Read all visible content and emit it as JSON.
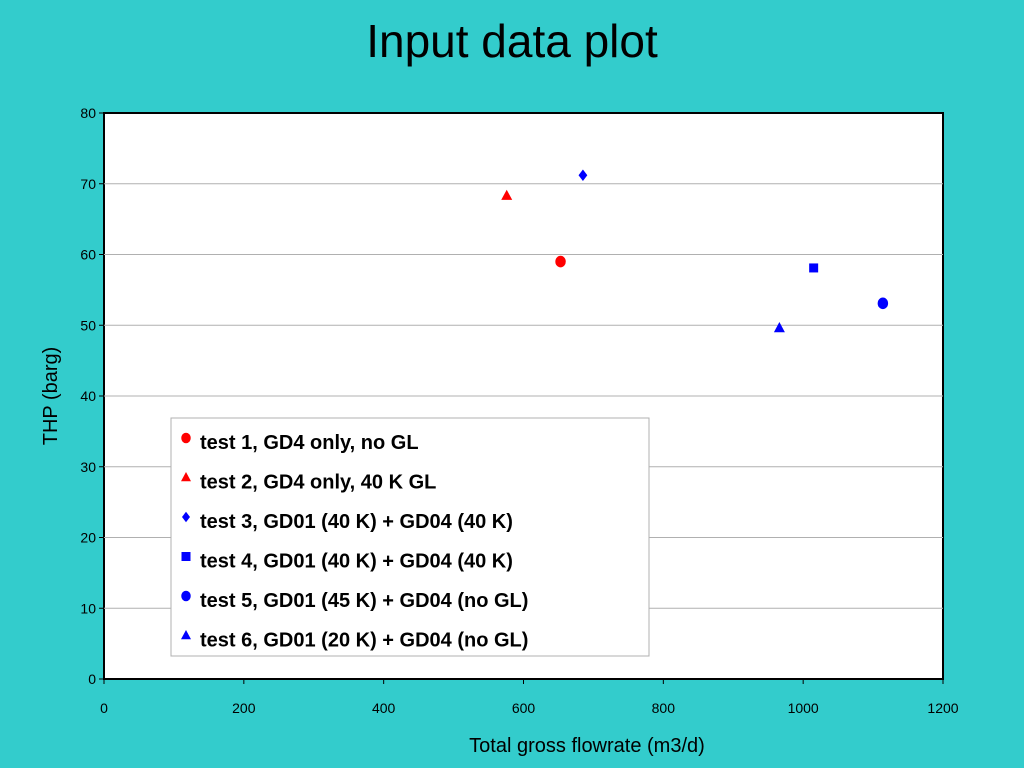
{
  "page": {
    "title": "Input data plot"
  },
  "chart_data": {
    "type": "scatter",
    "title": "Input data plot",
    "xlabel": "Total gross flowrate (m3/d)",
    "ylabel": "THP (barg)",
    "xlim": [
      0,
      1200
    ],
    "ylim": [
      0,
      80
    ],
    "xticks": [
      0,
      200,
      400,
      600,
      800,
      1000,
      1200
    ],
    "yticks": [
      0,
      10,
      20,
      30,
      40,
      50,
      60,
      70,
      80
    ],
    "grid": "horizontal",
    "legend_position": "bottom-left",
    "series": [
      {
        "name": "test 1, GD4 only, no GL",
        "marker": "circle",
        "color": "#ff0000",
        "points": [
          [
            653,
            59
          ]
        ]
      },
      {
        "name": "test 2, GD4 only, 40 K GL",
        "marker": "triangle",
        "color": "#ff0000",
        "points": [
          [
            576,
            68.3
          ]
        ]
      },
      {
        "name": "test 3, GD01 (40 K) + GD04 (40 K)",
        "marker": "diamond",
        "color": "#0000ff",
        "points": [
          [
            685,
            71.2
          ]
        ]
      },
      {
        "name": "test 4, GD01 (40 K) + GD04 (40 K)",
        "marker": "square",
        "color": "#0000ff",
        "points": [
          [
            1015,
            58.1
          ]
        ]
      },
      {
        "name": "test 5, GD01 (45 K) + GD04 (no GL)",
        "marker": "circle",
        "color": "#0000ff",
        "points": [
          [
            1114,
            53.1
          ]
        ]
      },
      {
        "name": "test 6, GD01 (20 K) + GD04 (no GL)",
        "marker": "triangle",
        "color": "#0000ff",
        "points": [
          [
            966,
            49.6
          ]
        ]
      }
    ]
  }
}
